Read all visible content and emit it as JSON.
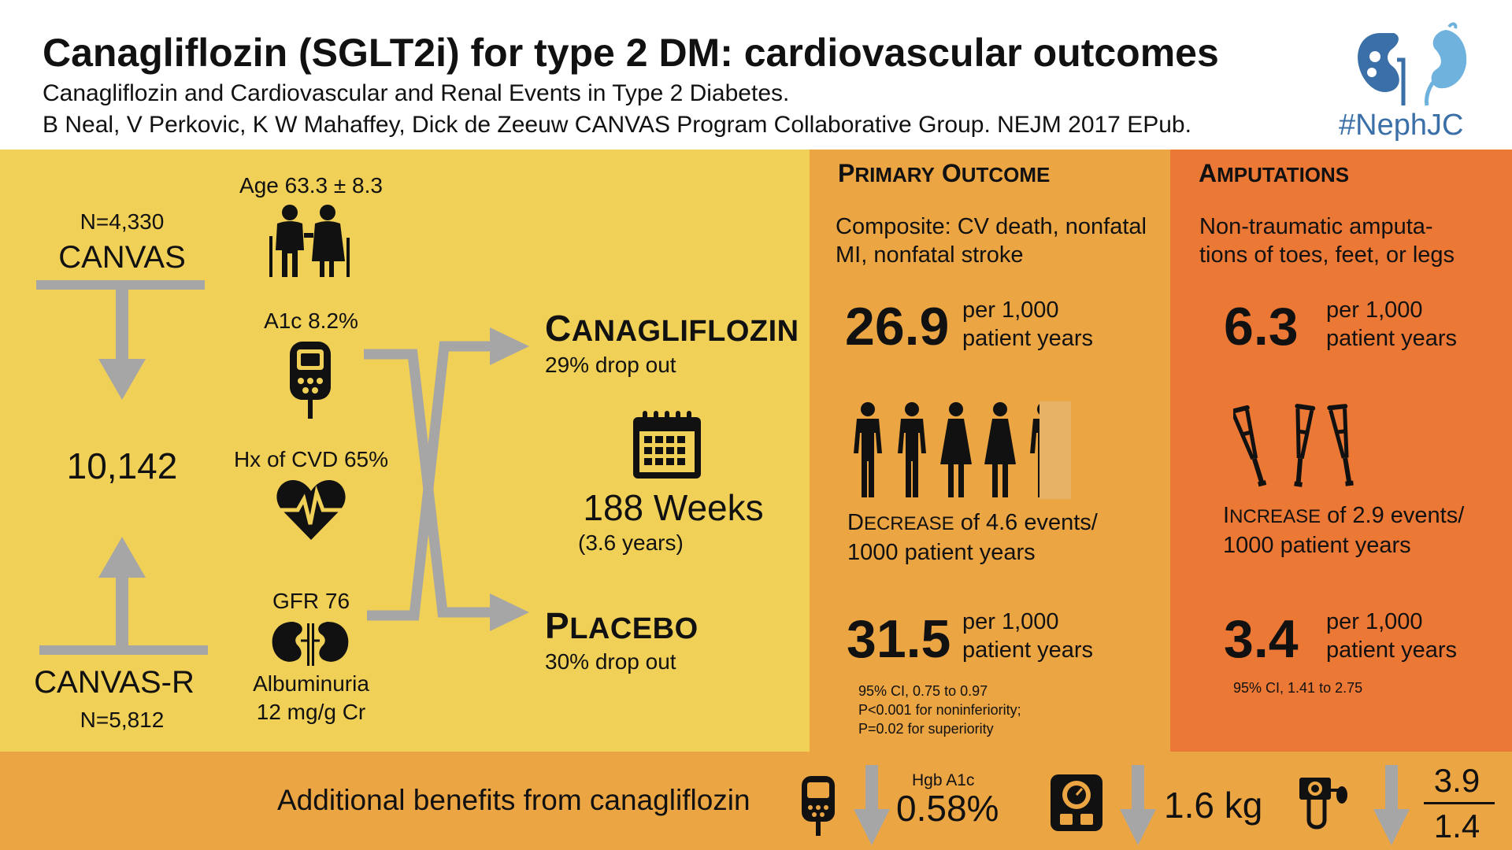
{
  "header": {
    "title": "Canagliflozin (SGLT2i) for type 2 DM: cardiovascular outcomes",
    "subtitle": "Canagliflozin and Cardiovascular and Renal Events in Type 2 Diabetes.",
    "citation": "B Neal, V Perkovic, K W Mahaffey, Dick de Zeeuw CANVAS Program Collaborative Group. NEJM 2017 EPub.",
    "logo_text": "#NephJC"
  },
  "trials": {
    "canvas_n": "N=4,330",
    "canvas_name": "CANVAS",
    "total": "10,142",
    "canvasr_name": "CANVAS-R",
    "canvasr_n": "N=5,812"
  },
  "baseline": {
    "age": "Age 63.3 ± 8.3",
    "a1c": "A1c 8.2%",
    "cvd": "Hx of CVD 65%",
    "gfr": "GFR 76",
    "albuminuria_1": "Albuminuria",
    "albuminuria_2": "12 mg/g Cr"
  },
  "arms": {
    "cana_first": "C",
    "cana_rest": "ANAGLIFLOZIN",
    "cana_dropout": "29% drop out",
    "placebo_first": "P",
    "placebo_rest": "LACEBO",
    "placebo_dropout": "30% drop out",
    "duration": "188 Weeks",
    "duration_years": "(3.6 years)"
  },
  "primary": {
    "head_first_1": "P",
    "head_rest_1": "RIMARY",
    "head_first_2": "O",
    "head_rest_2": "UTCOME",
    "desc_1": "Composite: CV death, nonfatal",
    "desc_2": "MI, nonfatal stroke",
    "cana_value": "26.9",
    "per_1": "per 1,000",
    "per_2": "patient years",
    "change_first": "D",
    "change_rest": "ECREASE",
    "change_tail": " of 4.6 events/",
    "change_line2": "1000 patient years",
    "placebo_value": "31.5",
    "stat_1": "95% CI, 0.75 to 0.97",
    "stat_2": "P<0.001 for noninferiority;",
    "stat_3": "P=0.02 for superiority"
  },
  "amputations": {
    "head_first": "A",
    "head_rest": "MPUTATIONS",
    "desc_1": "Non-traumatic amputa-",
    "desc_2": "tions of toes, feet, or legs",
    "cana_value": "6.3",
    "per_1": "per 1,000",
    "per_2": "patient years",
    "change_first": "I",
    "change_rest": "NCREASE",
    "change_tail": " of 2.9 events/",
    "change_line2": "1000 patient years",
    "placebo_value": "3.4",
    "stat_1": "95% CI, 1.41 to 2.75"
  },
  "footer": {
    "label": "Additional benefits from canagliflozin",
    "a1c_label": "Hgb A1c",
    "a1c_value": "0.58%",
    "weight_value": "1.6 kg",
    "bp_systolic": "3.9",
    "bp_diastolic": "1.4"
  },
  "colors": {
    "yellow": "#f1d057",
    "light_orange": "#eba543",
    "orange": "#ec7836",
    "arrow_gray": "#a6a6a6",
    "logo_blue": "#3a6fa8"
  }
}
